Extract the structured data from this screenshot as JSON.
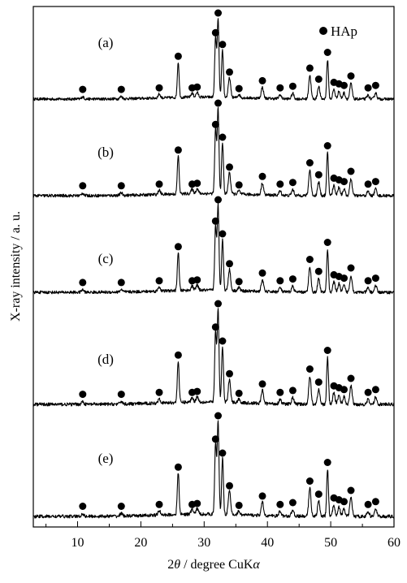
{
  "chart_data": {
    "type": "line",
    "xlabel_parts": [
      "2",
      "θ",
      " / degree CuK",
      "α"
    ],
    "ylabel": "X-ray  intensity / a. u.",
    "xlim": [
      3,
      60
    ],
    "x_ticks": [
      10,
      20,
      30,
      40,
      50,
      60
    ],
    "x_tick_labels": [
      "10",
      "20",
      "30",
      "40",
      "50",
      "60"
    ],
    "y_ticks_shown": false,
    "legend": {
      "marker": "filled-circle",
      "label": "HAp",
      "placement": "top-right"
    },
    "series": [
      {
        "name": "(a)"
      },
      {
        "name": "(b)"
      },
      {
        "name": "(c)"
      },
      {
        "name": "(d)"
      },
      {
        "name": "(e)"
      }
    ],
    "hap_peaks": [
      {
        "x": 10.8,
        "h": 0.03
      },
      {
        "x": 16.9,
        "h": 0.03
      },
      {
        "x": 22.9,
        "h": 0.05
      },
      {
        "x": 25.9,
        "h": 0.45
      },
      {
        "x": 28.1,
        "h": 0.05
      },
      {
        "x": 28.9,
        "h": 0.06
      },
      {
        "x": 31.8,
        "h": 0.75
      },
      {
        "x": 32.2,
        "h": 1.0
      },
      {
        "x": 32.9,
        "h": 0.6
      },
      {
        "x": 34.0,
        "h": 0.25
      },
      {
        "x": 35.5,
        "h": 0.04
      },
      {
        "x": 39.2,
        "h": 0.14
      },
      {
        "x": 42.0,
        "h": 0.05
      },
      {
        "x": 44.0,
        "h": 0.07
      },
      {
        "x": 46.7,
        "h": 0.3
      },
      {
        "x": 48.1,
        "h": 0.16
      },
      {
        "x": 49.5,
        "h": 0.5
      },
      {
        "x": 50.5,
        "h": 0.12
      },
      {
        "x": 51.3,
        "h": 0.1
      },
      {
        "x": 52.1,
        "h": 0.08
      },
      {
        "x": 53.2,
        "h": 0.2
      },
      {
        "x": 55.9,
        "h": 0.05
      },
      {
        "x": 57.1,
        "h": 0.08
      }
    ]
  }
}
